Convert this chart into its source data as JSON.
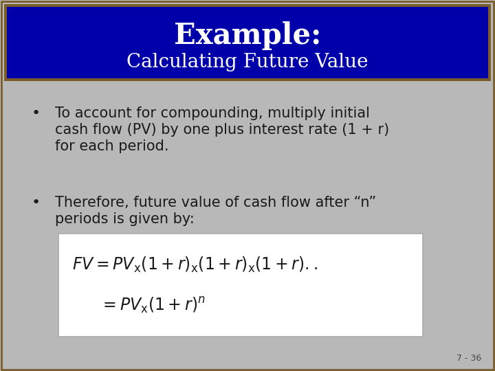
{
  "title_main": "Example:",
  "title_sub": "Calculating Future Value",
  "title_bg_color": "#0000aa",
  "title_border_outer": "#7a5c2a",
  "title_border_inner": "#9b7d3a",
  "slide_bg_color": "#b8b8b8",
  "bullet1_line1": "To account for compounding, multiply initial",
  "bullet1_line2": "cash flow (PV) by one plus interest rate (1 + r)",
  "bullet1_line3": "for each period.",
  "bullet2_line1": "Therefore, future value of cash flow after “n”",
  "bullet2_line2": "periods is given by:",
  "formula_box_bg": "#ffffff",
  "formula_box_border": "#aaaaaa",
  "page_num": "7 - 36",
  "text_color": "#1a1a1a",
  "title_text_color": "#ffffff"
}
